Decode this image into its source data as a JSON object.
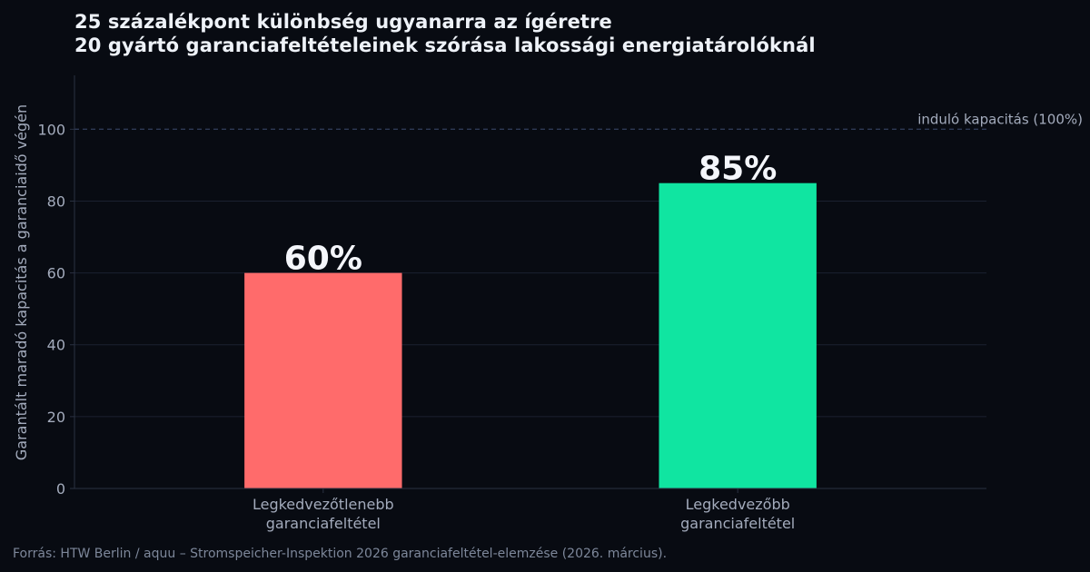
{
  "chart_data": {
    "type": "bar",
    "title": "25 százalékpont különbség ugyanarra az ígéretre",
    "subtitle": "20 gyártó garanciafeltételeinek szórása lakossági energiatárolóknál",
    "ylabel": "Garantált maradó kapacitás a garanciaidő végén",
    "xlabel": "",
    "categories": [
      [
        "Legkedvezőtlenebb",
        "garanciafeltétel"
      ],
      [
        "Legkedvezőbb",
        "garanciafeltétel"
      ]
    ],
    "values": [
      60,
      85
    ],
    "data_labels": [
      "60%",
      "85%"
    ],
    "colors": [
      "#ff6b6b",
      "#10e5a1"
    ],
    "ylim": [
      0,
      115
    ],
    "yticks": [
      0,
      20,
      40,
      60,
      80,
      100
    ],
    "grid": true,
    "reference_line": {
      "value": 100,
      "label": "induló kapacitás (100%)"
    }
  },
  "source": "Forrás: HTW Berlin / aquu – Stromspeicher-Inspektion 2026 garanciafeltétel-elemzése (2026. március).",
  "colors": {
    "background": "#080b12",
    "grid": "#1b2130",
    "axis": "#2a3142",
    "tick_text": "#a3abbc",
    "reference_line": "#2e3a55",
    "title_text": "#eef2f8",
    "data_label": "#f4f6fb"
  }
}
